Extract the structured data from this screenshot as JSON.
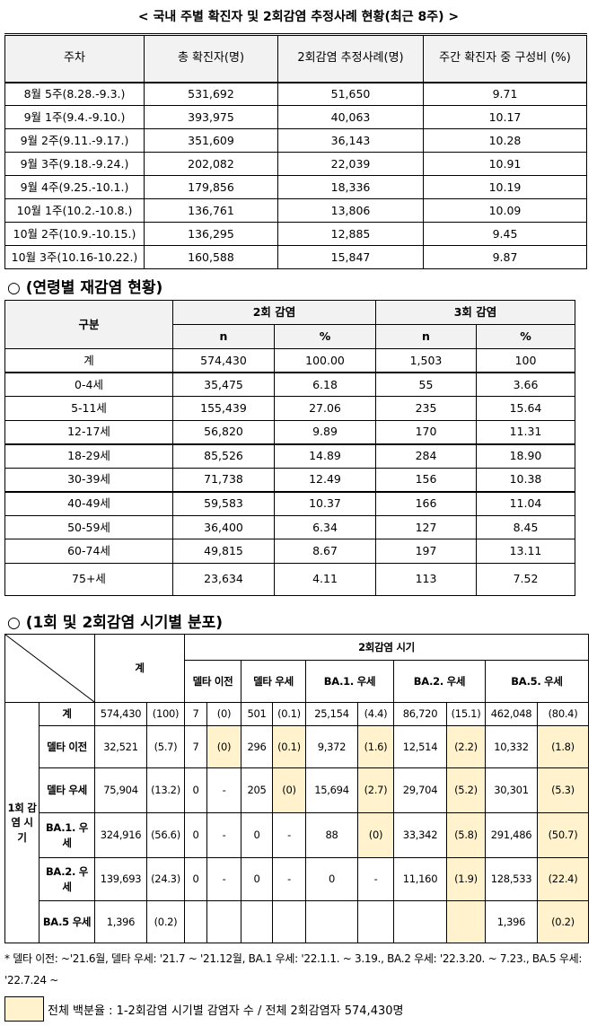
{
  "table1": {
    "title": "< 국내 주별 확진자 및 2회감염 추정사례 현황(최근 8주) >",
    "columns": [
      "주차",
      "총 확진자(명)",
      "2회감염 추정사례(명)",
      "주간 확진자 중 구성비 (%)"
    ],
    "rows": [
      [
        "8월 5주(8.28.-9.3.)",
        "531,692",
        "51,650",
        "9.71"
      ],
      [
        "9월 1주(9.4.-9.10.)",
        "393,975",
        "40,063",
        "10.17"
      ],
      [
        "9월 2주(9.11.-9.17.)",
        "351,609",
        "36,143",
        "10.28"
      ],
      [
        "9월 3주(9.18.-9.24.)",
        "202,082",
        "22,039",
        "10.91"
      ],
      [
        "9월 4주(9.25.-10.1.)",
        "179,856",
        "18,336",
        "10.19"
      ],
      [
        "10월 1주(10.2.-10.8.)",
        "136,761",
        "13,806",
        "10.09"
      ],
      [
        "10월 2주(10.9.-10.15.)",
        "136,295",
        "12,885",
        "9.45"
      ],
      [
        "10월 3주(10.16-10.22.)",
        "160,588",
        "15,847",
        "9.87"
      ]
    ]
  },
  "table2": {
    "heading": "○ (연령별 재감염 현황)",
    "label_header": "구분",
    "groups": [
      "2회 감염",
      "3회 감염"
    ],
    "subcolumns": [
      "n",
      "%",
      "n",
      "%"
    ],
    "rows": [
      [
        "계",
        "574,430",
        "100.00",
        "1,503",
        "100"
      ],
      [
        "0-4세",
        "35,475",
        "6.18",
        "55",
        "3.66"
      ],
      [
        "5-11세",
        "155,439",
        "27.06",
        "235",
        "15.64"
      ],
      [
        "12-17세",
        "56,820",
        "9.89",
        "170",
        "11.31"
      ],
      [
        "18-29세",
        "85,526",
        "14.89",
        "284",
        "18.90"
      ],
      [
        "30-39세",
        "71,738",
        "12.49",
        "156",
        "10.38"
      ],
      [
        "40-49세",
        "59,583",
        "10.37",
        "166",
        "11.04"
      ],
      [
        "50-59세",
        "36,400",
        "6.34",
        "127",
        "8.45"
      ],
      [
        "60-74세",
        "49,815",
        "8.67",
        "197",
        "13.11"
      ],
      [
        "75+세",
        "23,634",
        "4.11",
        "113",
        "7.52"
      ]
    ]
  },
  "table3": {
    "heading": "○ (1회 및 2회감염 시기별 분포)",
    "total_header": "계",
    "group_header": "2회감염 시기",
    "side_label": "1회 감염 시기",
    "columns": [
      "델타 이전",
      "델타 우세",
      "BA.1. 우세",
      "BA.2. 우세",
      "BA.5. 우세"
    ],
    "highlight_color": "#fff2cc",
    "rows": [
      {
        "label": "계",
        "cells": [
          "574,430",
          "(100)",
          "7",
          "(0)",
          "501",
          "(0.1)",
          "25,154",
          "(4.4)",
          "86,720",
          "(15.1)",
          "462,048",
          "(80.4)"
        ],
        "highlighted": []
      },
      {
        "label": "델타 이전",
        "cells": [
          "32,521",
          "(5.7)",
          "7",
          "(0)",
          "296",
          "(0.1)",
          "9,372",
          "(1.6)",
          "12,514",
          "(2.2)",
          "10,332",
          "(1.8)"
        ],
        "highlighted": [
          3,
          5,
          7,
          9,
          11
        ]
      },
      {
        "label": "델타 우세",
        "cells": [
          "75,904",
          "(13.2)",
          "0",
          "-",
          "205",
          "(0)",
          "15,694",
          "(2.7)",
          "29,704",
          "(5.2)",
          "30,301",
          "(5.3)"
        ],
        "highlighted": [
          5,
          7,
          9,
          11
        ]
      },
      {
        "label": "BA.1. 우세",
        "cells": [
          "324,916",
          "(56.6)",
          "0",
          "-",
          "0",
          "-",
          "88",
          "(0)",
          "33,342",
          "(5.8)",
          "291,486",
          "(50.7)"
        ],
        "highlighted": [
          7,
          9,
          11
        ]
      },
      {
        "label": "BA.2. 우세",
        "cells": [
          "139,693",
          "(24.3)",
          "0",
          "-",
          "0",
          "-",
          "0",
          "-",
          "11,160",
          "(1.9)",
          "128,533",
          "(22.4)"
        ],
        "highlighted": [
          9,
          11
        ]
      },
      {
        "label": "BA.5 우세",
        "cells": [
          "1,396",
          "(0.2)",
          null,
          null,
          null,
          null,
          null,
          null,
          null,
          null,
          "1,396",
          "(0.2)"
        ],
        "highlighted": [
          9,
          11
        ]
      }
    ]
  },
  "footnote": "* 델타 이전: ~'21.6월, 델타 우세: '21.7 ~ '21.12월, BA.1 우세: '22.1.1. ~ 3.19., BA.2 우세: '22.3.20. ~ 7.23., BA.5 우세: '22.7.24 ~",
  "legend": "전체 백분율 : 1-2회감염 시기별 감염자 수 / 전체 2회감염자 574,430명"
}
